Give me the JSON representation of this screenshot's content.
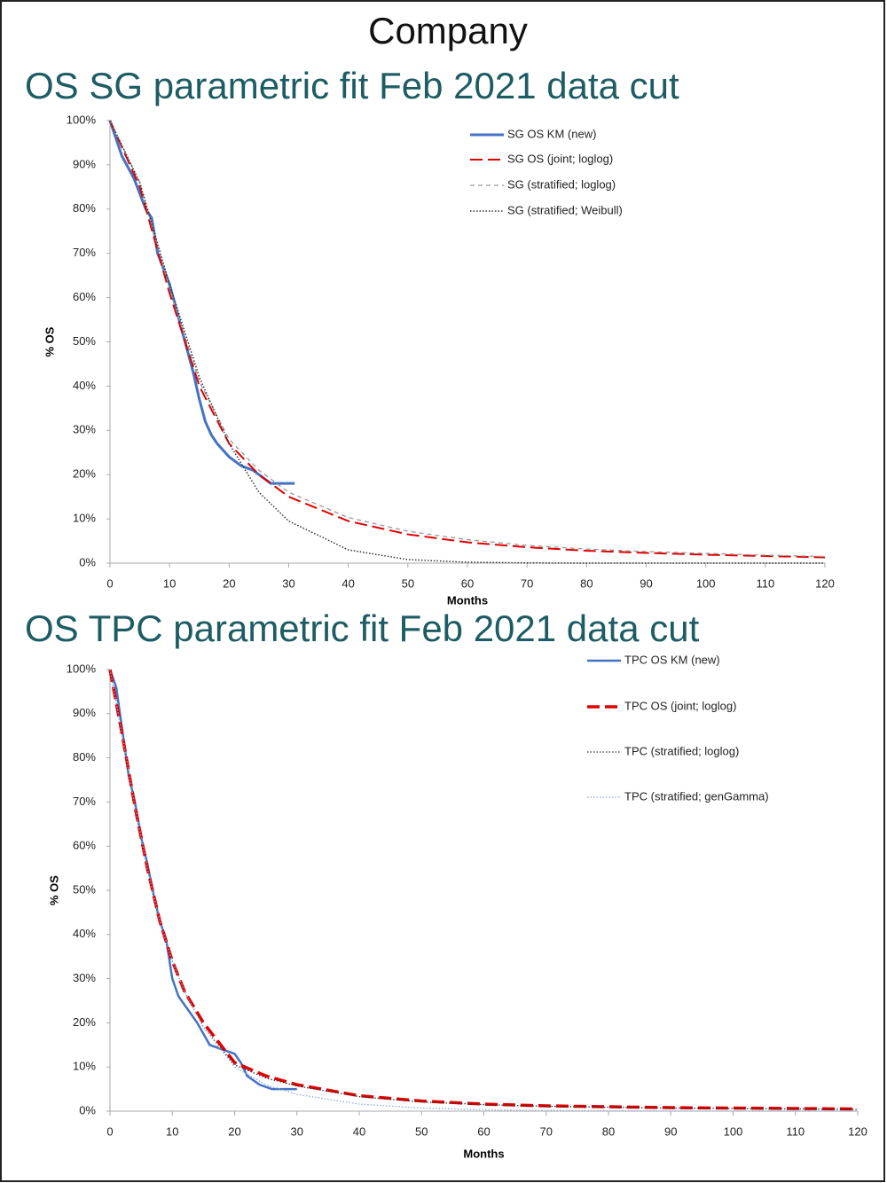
{
  "header": {
    "title": "Company"
  },
  "chart_data": [
    {
      "type": "line",
      "title": "OS SG parametric fit Feb 2021 data cut",
      "xlabel": "Months",
      "ylabel": "% OS",
      "xlim": [
        0,
        120
      ],
      "xticks": [
        0,
        10,
        20,
        30,
        40,
        50,
        60,
        70,
        80,
        90,
        100,
        110,
        120
      ],
      "ylim": [
        0,
        100
      ],
      "yticks": [
        {
          "value": 0,
          "label": "0%"
        },
        {
          "value": 10,
          "label": "10%"
        },
        {
          "value": 20,
          "label": "20%"
        },
        {
          "value": 30,
          "label": "30%"
        },
        {
          "value": 40,
          "label": "40%"
        },
        {
          "value": 50,
          "label": "50%"
        },
        {
          "value": 60,
          "label": "60%"
        },
        {
          "value": 70,
          "label": "70%"
        },
        {
          "value": 80,
          "label": "80%"
        },
        {
          "value": 90,
          "label": "90%"
        },
        {
          "value": 100,
          "label": "100%"
        }
      ],
      "grid": false,
      "legend": "upper right",
      "series": [
        {
          "name": "SG OS KM (new)",
          "color": "#4472c4",
          "style": "solid",
          "width": 3,
          "x": [
            0,
            2,
            4,
            6,
            7,
            8,
            10,
            12,
            14,
            15,
            16,
            17,
            18,
            20,
            22,
            24,
            26,
            27,
            31
          ],
          "values": [
            100,
            92,
            87,
            80,
            78,
            70,
            63,
            53,
            43,
            37,
            32,
            29,
            27,
            24,
            22,
            21,
            19,
            18,
            18
          ]
        },
        {
          "name": "SG OS (joint; loglog)",
          "color": "#e00000",
          "style": "longdash",
          "width": 2,
          "x": [
            0,
            5,
            10,
            15,
            20,
            25,
            30,
            40,
            50,
            60,
            70,
            80,
            90,
            100,
            110,
            120
          ],
          "values": [
            100,
            85,
            61,
            40,
            27,
            20,
            15,
            9.5,
            6.5,
            4.7,
            3.6,
            2.8,
            2.3,
            1.9,
            1.6,
            1.3
          ]
        },
        {
          "name": "SG (stratified; loglog)",
          "color": "#999999",
          "style": "dashed",
          "width": 1.3,
          "x": [
            0,
            5,
            10,
            15,
            20,
            25,
            30,
            40,
            50,
            60,
            70,
            80,
            90,
            100,
            110,
            120
          ],
          "values": [
            100,
            86,
            62,
            41,
            28,
            21,
            16,
            10.3,
            7.2,
            5.3,
            4.0,
            3.2,
            2.6,
            2.2,
            1.8,
            1.5
          ]
        },
        {
          "name": "SG (stratified; Weibull)",
          "color": "#333333",
          "style": "dotted",
          "width": 1.5,
          "x": [
            0,
            5,
            10,
            15,
            20,
            25,
            30,
            40,
            50,
            60,
            70,
            80,
            90,
            100,
            110,
            120
          ],
          "values": [
            100,
            86,
            63,
            42,
            27,
            16,
            9.5,
            3.0,
            0.8,
            0.2,
            0.05,
            0,
            0,
            0,
            0,
            0
          ]
        }
      ]
    },
    {
      "type": "line",
      "title": "OS TPC parametric fit Feb 2021 data cut",
      "xlabel": "Months",
      "ylabel": "% OS",
      "xlim": [
        0,
        120
      ],
      "xticks": [
        0,
        10,
        20,
        30,
        40,
        50,
        60,
        70,
        80,
        90,
        100,
        110,
        120
      ],
      "ylim": [
        0,
        100
      ],
      "yticks": [
        {
          "value": 0,
          "label": "0%"
        },
        {
          "value": 10,
          "label": "10%"
        },
        {
          "value": 20,
          "label": "20%"
        },
        {
          "value": 30,
          "label": "30%"
        },
        {
          "value": 40,
          "label": "40%"
        },
        {
          "value": 50,
          "label": "50%"
        },
        {
          "value": 60,
          "label": "60%"
        },
        {
          "value": 70,
          "label": "70%"
        },
        {
          "value": 80,
          "label": "80%"
        },
        {
          "value": 90,
          "label": "90%"
        },
        {
          "value": 100,
          "label": "100%"
        }
      ],
      "grid": false,
      "legend": "upper right",
      "series": [
        {
          "name": "TPC OS KM (new)",
          "color": "#4472c4",
          "style": "solid",
          "width": 2.5,
          "x": [
            0,
            1,
            2,
            3,
            4,
            5,
            6,
            7,
            8,
            9,
            10,
            11,
            12,
            14,
            16,
            18,
            20,
            21,
            22,
            24,
            26,
            28,
            30
          ],
          "values": [
            100,
            96,
            86,
            76,
            70,
            62,
            56,
            49,
            43,
            39,
            30,
            26,
            24,
            20,
            15,
            14,
            13,
            11,
            8,
            6,
            5,
            5,
            5
          ]
        },
        {
          "name": "TPC OS (joint; loglog)",
          "color": "#e00000",
          "style": "longdash",
          "width": 3.5,
          "x": [
            0,
            2,
            4,
            6,
            8,
            10,
            12,
            15,
            20,
            25,
            30,
            40,
            50,
            60,
            70,
            80,
            90,
            100,
            110,
            120
          ],
          "values": [
            100,
            85,
            69,
            55,
            43,
            34,
            27,
            20,
            11,
            8,
            6,
            3.5,
            2.3,
            1.6,
            1.2,
            1.0,
            0.8,
            0.7,
            0.6,
            0.5
          ]
        },
        {
          "name": "TPC (stratified; loglog)",
          "color": "#333333",
          "style": "dotted",
          "width": 1.3,
          "x": [
            0,
            2,
            4,
            6,
            8,
            10,
            12,
            15,
            20,
            25,
            30,
            40,
            50,
            60,
            70,
            80,
            90,
            100,
            110,
            120
          ],
          "values": [
            100,
            85,
            69,
            55,
            43,
            34,
            27,
            19,
            10.5,
            7.5,
            5.7,
            3.3,
            2.1,
            1.5,
            1.1,
            0.9,
            0.7,
            0.6,
            0.5,
            0.4
          ]
        },
        {
          "name": "TPC (stratified; genGamma)",
          "color": "#8eaadb",
          "style": "dotted",
          "width": 1.3,
          "x": [
            0,
            2,
            4,
            6,
            8,
            10,
            12,
            15,
            20,
            25,
            30,
            40,
            50,
            60,
            70,
            80,
            90,
            100,
            110,
            120
          ],
          "values": [
            100,
            85,
            69,
            55,
            43,
            34,
            27,
            19,
            10,
            6,
            3.8,
            1.6,
            0.7,
            0.3,
            0.15,
            0.08,
            0.04,
            0.02,
            0.01,
            0
          ]
        }
      ]
    }
  ]
}
